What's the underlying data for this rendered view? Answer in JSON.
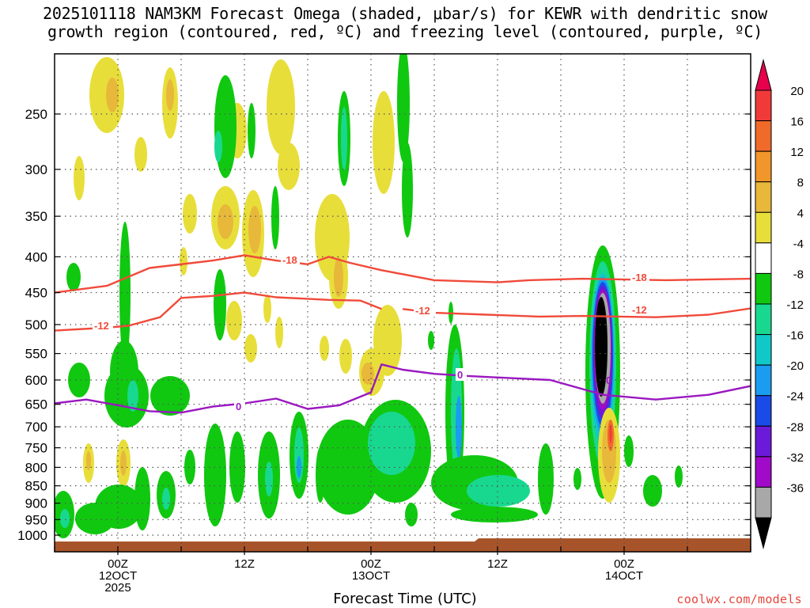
{
  "title_line1": "2025101118 NAM3KM Forecast Omega (shaded, μbar/s) for KEWR with dendritic snow",
  "title_line2": "growth region (contoured, red, ºC) and freezing level (contoured, purple, ºC)",
  "credit": "coolwx.com/models",
  "chart_data": {
    "type": "heatmap",
    "xlabel": "Forecast Time (UTC)",
    "ylabel": "",
    "y_axis_reversed": true,
    "x_range": [
      "2025-10-11T18Z",
      "2025-10-14T12Z"
    ],
    "y_range": [
      1000,
      200
    ],
    "x_tick_labels": [
      {
        "time": "2025-10-12T00Z",
        "lines": [
          "00Z",
          "12OCT",
          "2025"
        ]
      },
      {
        "time": "2025-10-12T12Z",
        "lines": [
          "12Z"
        ]
      },
      {
        "time": "2025-10-13T00Z",
        "lines": [
          "00Z",
          "13OCT"
        ]
      },
      {
        "time": "2025-10-13T12Z",
        "lines": [
          "12Z"
        ]
      },
      {
        "time": "2025-10-14T00Z",
        "lines": [
          "00Z",
          "14OCT"
        ]
      }
    ],
    "y_tick_labels": [
      "250",
      "300",
      "350",
      "400",
      "450",
      "500",
      "550",
      "600",
      "650",
      "700",
      "750",
      "800",
      "850",
      "900",
      "950",
      "1000"
    ],
    "grid": true,
    "colorbar": {
      "labels": [
        "20",
        "16",
        "12",
        "8",
        "4",
        "-4",
        "-8",
        "-12",
        "-16",
        "-20",
        "-24",
        "-28",
        "-32",
        "-36"
      ],
      "colors": [
        "#e8004c",
        "#f03a3a",
        "#f06a2a",
        "#f0962a",
        "#e8b83a",
        "#e8de3a",
        "#ffffff",
        "#10c810",
        "#18d890",
        "#10c8c8",
        "#1a9cf0",
        "#1a4ae8",
        "#6a1ad8",
        "#a00ac8",
        "#a8a8a8",
        "#000000"
      ]
    },
    "contour_labels": {
      "dgz": [
        "-18",
        "-12",
        "-12",
        "-18",
        "-12"
      ],
      "freezing": [
        "0",
        "0",
        "0"
      ]
    },
    "series": [
      {
        "name": "-18",
        "color": "#f04a3a",
        "points": [
          [
            "2025-10-11T18Z",
            450
          ],
          [
            "2025-10-11T23Z",
            440
          ],
          [
            "2025-10-12T03Z",
            415
          ],
          [
            "2025-10-12T09Z",
            405
          ],
          [
            "2025-10-12T12Z",
            398
          ],
          [
            "2025-10-12T15Z",
            405
          ],
          [
            "2025-10-12T18Z",
            410
          ],
          [
            "2025-10-12T20Z",
            400
          ],
          [
            "2025-10-12T22Z",
            408
          ],
          [
            "2025-10-13T01Z",
            418
          ],
          [
            "2025-10-13T06Z",
            432
          ],
          [
            "2025-10-13T12Z",
            435
          ],
          [
            "2025-10-13T15Z",
            432
          ],
          [
            "2025-10-13T20Z",
            430
          ],
          [
            "2025-10-14T04Z",
            432
          ],
          [
            "2025-10-14T12Z",
            430
          ]
        ]
      },
      {
        "name": "-12",
        "color": "#f04a3a",
        "points": [
          [
            "2025-10-11T18Z",
            510
          ],
          [
            "2025-10-11T23Z",
            505
          ],
          [
            "2025-10-12T01Z",
            502
          ],
          [
            "2025-10-12T04Z",
            488
          ],
          [
            "2025-10-12T06Z",
            458
          ],
          [
            "2025-10-12T09Z",
            455
          ],
          [
            "2025-10-12T12Z",
            450
          ],
          [
            "2025-10-12T15Z",
            457
          ],
          [
            "2025-10-12T20Z",
            461
          ],
          [
            "2025-10-12T23Z",
            462
          ],
          [
            "2025-10-13T01Z",
            475
          ]
        ]
      },
      {
        "name": "-12",
        "color": "#f04a3a",
        "points": [
          [
            "2025-10-13T03Z",
            475
          ],
          [
            "2025-10-13T06Z",
            481
          ],
          [
            "2025-10-13T11Z",
            484
          ],
          [
            "2025-10-13T16Z",
            487
          ],
          [
            "2025-10-13T20Z",
            486
          ],
          [
            "2025-10-14T03Z",
            488
          ],
          [
            "2025-10-14T08Z",
            484
          ],
          [
            "2025-10-14T12Z",
            474
          ]
        ]
      },
      {
        "name": "0",
        "color": "#9a18c0",
        "points": [
          [
            "2025-10-11T18Z",
            648
          ],
          [
            "2025-10-11T21Z",
            640
          ],
          [
            "2025-10-12T00Z",
            652
          ],
          [
            "2025-10-12T03Z",
            665
          ],
          [
            "2025-10-12T06Z",
            668
          ],
          [
            "2025-10-12T09Z",
            655
          ],
          [
            "2025-10-12T12Z",
            648
          ],
          [
            "2025-10-12T15Z",
            638
          ],
          [
            "2025-10-12T18Z",
            660
          ],
          [
            "2025-10-12T21Z",
            652
          ],
          [
            "2025-10-13T00Z",
            625
          ],
          [
            "2025-10-13T01Z",
            570
          ],
          [
            "2025-10-13T03Z",
            580
          ],
          [
            "2025-10-13T06Z",
            588
          ],
          [
            "2025-10-13T09Z",
            592
          ],
          [
            "2025-10-13T12Z",
            595
          ],
          [
            "2025-10-13T17Z",
            600
          ],
          [
            "2025-10-13T22Z",
            630
          ],
          [
            "2025-10-14T03Z",
            640
          ],
          [
            "2025-10-14T08Z",
            630
          ],
          [
            "2025-10-14T12Z",
            612
          ]
        ]
      }
    ]
  }
}
